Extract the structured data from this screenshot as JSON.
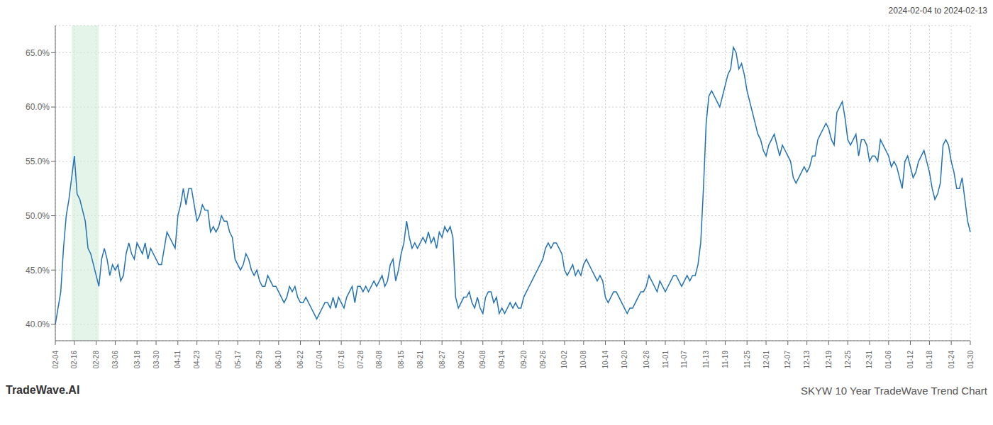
{
  "chart_data": {
    "type": "line",
    "title": "SKYW 10 Year TradeWave Trend Chart",
    "subtitle": "2024-02-04 to 2024-02-13",
    "annotations": [
      {
        "text": "TradeWave.AI"
      }
    ],
    "color": "#2272b5",
    "grid": true,
    "ylim": [
      38.5,
      67.5
    ],
    "yticks": [
      {
        "value": 40.0,
        "label": "40.0%"
      },
      {
        "value": 45.0,
        "label": "45.0%"
      },
      {
        "value": 50.0,
        "label": "50.0%"
      },
      {
        "value": 55.0,
        "label": "55.0%"
      },
      {
        "value": 60.0,
        "label": "60.0%"
      },
      {
        "value": 65.0,
        "label": "65.0%"
      }
    ],
    "highlight": {
      "from": 6,
      "to": 16,
      "color": "#d4edda"
    },
    "categories": [
      "02-04",
      null,
      null,
      null,
      null,
      null,
      null,
      "02-16",
      null,
      null,
      null,
      null,
      null,
      null,
      null,
      "02-28",
      null,
      null,
      null,
      null,
      null,
      null,
      "03-06",
      null,
      null,
      null,
      null,
      null,
      null,
      null,
      "03-18",
      null,
      null,
      null,
      null,
      null,
      null,
      "03-30",
      null,
      null,
      null,
      null,
      null,
      null,
      null,
      "04-11",
      null,
      null,
      null,
      null,
      null,
      null,
      "04-23",
      null,
      null,
      null,
      null,
      null,
      null,
      null,
      "05-05",
      null,
      null,
      null,
      null,
      null,
      null,
      "05-17",
      null,
      null,
      null,
      null,
      null,
      null,
      null,
      "05-29",
      null,
      null,
      null,
      null,
      null,
      null,
      "06-10",
      null,
      null,
      null,
      null,
      null,
      null,
      null,
      "06-22",
      null,
      null,
      null,
      null,
      null,
      null,
      "07-04",
      null,
      null,
      null,
      null,
      null,
      null,
      null,
      "07-16",
      null,
      null,
      null,
      null,
      null,
      null,
      "07-28",
      null,
      null,
      null,
      null,
      null,
      null,
      "08-08",
      null,
      null,
      null,
      null,
      null,
      null,
      null,
      "08-15",
      null,
      null,
      null,
      null,
      null,
      null,
      "08-21",
      null,
      null,
      null,
      null,
      null,
      null,
      null,
      "08-27",
      null,
      null,
      null,
      null,
      null,
      null,
      "09-02",
      null,
      null,
      null,
      null,
      null,
      null,
      null,
      "09-08",
      null,
      null,
      null,
      null,
      null,
      null,
      "09-14",
      null,
      null,
      null,
      null,
      null,
      null,
      null,
      "09-20",
      null,
      null,
      null,
      null,
      null,
      null,
      "09-26",
      null,
      null,
      null,
      null,
      null,
      null,
      null,
      "10-02",
      null,
      null,
      null,
      null,
      null,
      null,
      "10-08",
      null,
      null,
      null,
      null,
      null,
      null,
      null,
      "10-14",
      null,
      null,
      null,
      null,
      null,
      null,
      "10-20",
      null,
      null,
      null,
      null,
      null,
      null,
      null,
      "10-26",
      null,
      null,
      null,
      null,
      null,
      null,
      "11-01",
      null,
      null,
      null,
      null,
      null,
      null,
      "11-07",
      null,
      null,
      null,
      null,
      null,
      null,
      null,
      "11-13",
      null,
      null,
      null,
      null,
      null,
      null,
      "11-19",
      null,
      null,
      null,
      null,
      null,
      null,
      null,
      "11-25",
      null,
      null,
      null,
      null,
      null,
      null,
      "12-01",
      null,
      null,
      null,
      null,
      null,
      null,
      null,
      "12-07",
      null,
      null,
      null,
      null,
      null,
      null,
      "12-13",
      null,
      null,
      null,
      null,
      null,
      null,
      null,
      "12-19",
      null,
      null,
      null,
      null,
      null,
      null,
      "12-25",
      null,
      null,
      null,
      null,
      null,
      null,
      null,
      "12-31",
      null,
      null,
      null,
      null,
      null,
      null,
      "01-06",
      null,
      null,
      null,
      null,
      null,
      null,
      null,
      "01-12",
      null,
      null,
      null,
      null,
      null,
      null,
      "01-18",
      null,
      null,
      null,
      null,
      null,
      null,
      null,
      "01-24",
      null,
      null,
      null,
      null,
      null,
      null,
      "01-30"
    ],
    "values": [
      40.0,
      41.5,
      43.0,
      47.0,
      50.0,
      51.5,
      53.5,
      55.5,
      52.0,
      51.5,
      50.5,
      49.5,
      47.0,
      46.5,
      45.5,
      44.5,
      43.5,
      46.0,
      47.0,
      46.0,
      44.5,
      45.5,
      45.0,
      45.5,
      44.0,
      44.5,
      46.5,
      47.5,
      46.5,
      46.0,
      47.5,
      47.0,
      46.5,
      47.5,
      46.0,
      47.0,
      46.5,
      46.0,
      45.5,
      45.5,
      47.0,
      48.5,
      48.0,
      47.5,
      47.0,
      50.0,
      51.0,
      52.5,
      51.0,
      52.5,
      52.5,
      51.0,
      49.5,
      50.0,
      51.0,
      50.5,
      50.5,
      48.5,
      49.0,
      48.5,
      49.0,
      50.0,
      49.5,
      49.5,
      48.5,
      48.0,
      46.0,
      45.5,
      45.0,
      45.5,
      46.5,
      46.0,
      45.0,
      44.5,
      45.0,
      44.0,
      43.5,
      43.5,
      44.5,
      44.0,
      43.5,
      43.5,
      43.0,
      42.5,
      42.0,
      42.5,
      43.5,
      43.0,
      43.5,
      42.5,
      42.0,
      42.0,
      42.5,
      42.0,
      41.5,
      41.0,
      40.5,
      41.0,
      41.5,
      42.0,
      42.0,
      41.5,
      42.5,
      41.5,
      42.5,
      42.0,
      41.5,
      42.5,
      43.0,
      43.5,
      42.0,
      43.5,
      43.5,
      43.0,
      43.5,
      43.0,
      43.5,
      44.0,
      43.5,
      44.0,
      44.5,
      43.5,
      44.0,
      45.5,
      46.0,
      44.0,
      45.0,
      46.5,
      47.5,
      49.5,
      48.0,
      47.0,
      47.5,
      47.0,
      47.5,
      48.0,
      47.5,
      48.5,
      47.5,
      48.0,
      47.0,
      48.5,
      48.0,
      49.0,
      48.5,
      49.0,
      48.0,
      42.5,
      41.5,
      42.0,
      42.5,
      42.5,
      43.0,
      42.0,
      41.5,
      42.5,
      41.5,
      41.0,
      42.5,
      43.0,
      43.0,
      42.0,
      42.5,
      41.0,
      41.5,
      41.0,
      41.5,
      42.0,
      41.5,
      42.0,
      41.5,
      41.5,
      42.5,
      43.0,
      43.5,
      44.0,
      44.5,
      45.0,
      45.5,
      46.0,
      47.0,
      47.5,
      47.0,
      47.5,
      47.5,
      47.0,
      46.5,
      45.0,
      44.5,
      45.0,
      45.5,
      44.5,
      45.0,
      44.5,
      45.5,
      46.0,
      45.5,
      45.0,
      44.5,
      44.0,
      44.5,
      44.0,
      42.5,
      42.0,
      42.5,
      43.0,
      43.0,
      42.5,
      42.0,
      41.5,
      41.0,
      41.5,
      41.5,
      42.0,
      42.5,
      43.0,
      43.0,
      43.5,
      44.5,
      44.0,
      43.5,
      43.0,
      44.0,
      43.5,
      43.0,
      43.5,
      44.0,
      44.5,
      44.5,
      44.0,
      43.5,
      44.0,
      44.5,
      44.0,
      44.5,
      44.5,
      45.5,
      47.5,
      52.5,
      58.5,
      61.0,
      61.5,
      61.0,
      60.5,
      60.0,
      61.0,
      62.0,
      63.0,
      63.5,
      65.5,
      65.0,
      63.5,
      64.0,
      63.0,
      61.5,
      60.5,
      59.5,
      58.5,
      57.5,
      57.0,
      56.0,
      55.5,
      56.5,
      57.0,
      57.5,
      56.5,
      55.5,
      56.5,
      56.0,
      55.5,
      55.0,
      53.5,
      53.0,
      53.5,
      54.0,
      54.5,
      54.0,
      54.5,
      55.5,
      55.5,
      57.0,
      57.5,
      58.0,
      58.5,
      58.0,
      57.0,
      56.5,
      59.5,
      60.0,
      60.5,
      59.0,
      57.0,
      56.5,
      57.0,
      57.5,
      55.5,
      57.0,
      57.0,
      56.5,
      55.0,
      55.5,
      55.5,
      55.0,
      57.0,
      56.5,
      56.0,
      55.5,
      54.5,
      55.0,
      54.5,
      53.5,
      52.5,
      55.0,
      55.5,
      54.5,
      53.5,
      54.0,
      55.0,
      55.5,
      56.0,
      55.0,
      54.0,
      52.5,
      51.5,
      52.0,
      53.0,
      56.5,
      57.0,
      56.5,
      55.0,
      54.0,
      52.5,
      52.5,
      53.5,
      51.5,
      49.5,
      48.5
    ]
  }
}
